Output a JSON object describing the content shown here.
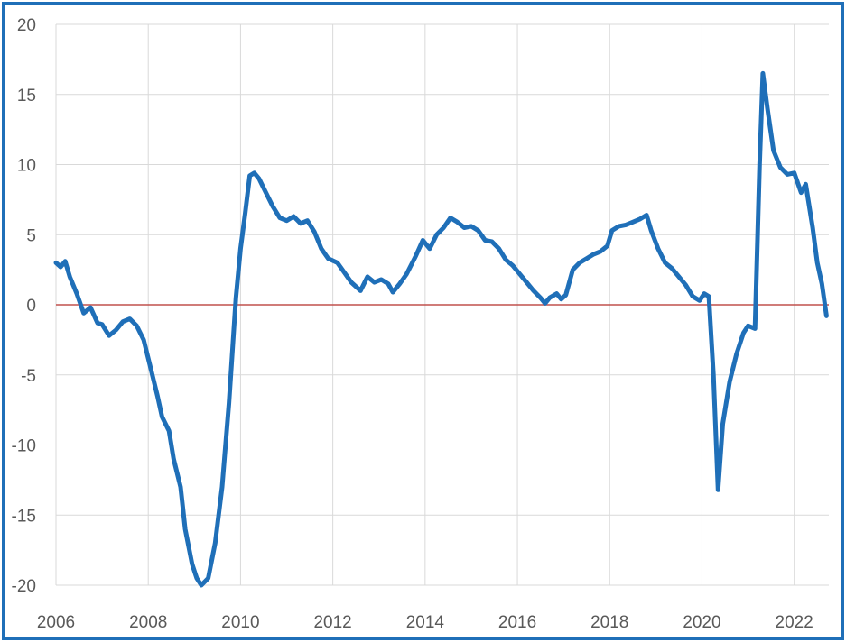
{
  "chart_data": {
    "type": "line",
    "title": "",
    "xlabel": "",
    "ylabel": "",
    "xlim": [
      2006.0,
      2022.75
    ],
    "ylim": [
      -20,
      20
    ],
    "x_ticks": [
      2006,
      2008,
      2010,
      2012,
      2014,
      2016,
      2018,
      2020,
      2022
    ],
    "x_tick_labels": [
      "2006",
      "2008",
      "2010",
      "2012",
      "2014",
      "2016",
      "2018",
      "2020",
      "2022"
    ],
    "y_ticks": [
      20,
      15,
      10,
      5,
      0,
      -5,
      -10,
      -15,
      -20
    ],
    "y_tick_labels": [
      "20",
      "15",
      "10",
      "5",
      "0",
      "-5",
      "-10",
      "-15",
      "-20"
    ],
    "grid": true,
    "reference_line": {
      "y": 0,
      "color": "#c0504d"
    },
    "colors": {
      "series": "#1f6fb8",
      "grid": "#d9d9d9",
      "frame": "#1f6fb8",
      "tick_text": "#595959"
    },
    "series": [
      {
        "color": "#1f6fb8",
        "points": [
          [
            2006.0,
            3.0
          ],
          [
            2006.1,
            2.7
          ],
          [
            2006.2,
            3.1
          ],
          [
            2006.3,
            2.0
          ],
          [
            2006.45,
            0.8
          ],
          [
            2006.6,
            -0.6
          ],
          [
            2006.75,
            -0.2
          ],
          [
            2006.9,
            -1.3
          ],
          [
            2007.0,
            -1.4
          ],
          [
            2007.15,
            -2.2
          ],
          [
            2007.3,
            -1.8
          ],
          [
            2007.45,
            -1.2
          ],
          [
            2007.6,
            -1.0
          ],
          [
            2007.75,
            -1.5
          ],
          [
            2007.9,
            -2.5
          ],
          [
            2008.05,
            -4.5
          ],
          [
            2008.2,
            -6.5
          ],
          [
            2008.3,
            -8.0
          ],
          [
            2008.45,
            -9.0
          ],
          [
            2008.55,
            -11.0
          ],
          [
            2008.7,
            -13.0
          ],
          [
            2008.8,
            -16.0
          ],
          [
            2008.95,
            -18.5
          ],
          [
            2009.05,
            -19.5
          ],
          [
            2009.15,
            -20.0
          ],
          [
            2009.3,
            -19.5
          ],
          [
            2009.45,
            -17.0
          ],
          [
            2009.6,
            -13.0
          ],
          [
            2009.75,
            -7.0
          ],
          [
            2009.9,
            0.5
          ],
          [
            2010.0,
            4.0
          ],
          [
            2010.1,
            6.5
          ],
          [
            2010.2,
            9.2
          ],
          [
            2010.3,
            9.4
          ],
          [
            2010.4,
            9.0
          ],
          [
            2010.55,
            8.0
          ],
          [
            2010.7,
            7.0
          ],
          [
            2010.85,
            6.2
          ],
          [
            2011.0,
            6.0
          ],
          [
            2011.15,
            6.3
          ],
          [
            2011.3,
            5.8
          ],
          [
            2011.45,
            6.0
          ],
          [
            2011.6,
            5.2
          ],
          [
            2011.75,
            4.0
          ],
          [
            2011.9,
            3.3
          ],
          [
            2012.1,
            3.0
          ],
          [
            2012.25,
            2.3
          ],
          [
            2012.4,
            1.6
          ],
          [
            2012.6,
            1.0
          ],
          [
            2012.75,
            2.0
          ],
          [
            2012.9,
            1.6
          ],
          [
            2013.05,
            1.8
          ],
          [
            2013.2,
            1.5
          ],
          [
            2013.3,
            0.9
          ],
          [
            2013.45,
            1.5
          ],
          [
            2013.6,
            2.2
          ],
          [
            2013.8,
            3.5
          ],
          [
            2013.95,
            4.6
          ],
          [
            2014.1,
            4.0
          ],
          [
            2014.25,
            5.0
          ],
          [
            2014.4,
            5.5
          ],
          [
            2014.55,
            6.2
          ],
          [
            2014.7,
            5.9
          ],
          [
            2014.85,
            5.5
          ],
          [
            2015.0,
            5.6
          ],
          [
            2015.15,
            5.3
          ],
          [
            2015.3,
            4.6
          ],
          [
            2015.45,
            4.5
          ],
          [
            2015.6,
            4.0
          ],
          [
            2015.75,
            3.2
          ],
          [
            2015.9,
            2.8
          ],
          [
            2016.05,
            2.2
          ],
          [
            2016.2,
            1.6
          ],
          [
            2016.35,
            1.0
          ],
          [
            2016.5,
            0.5
          ],
          [
            2016.6,
            0.1
          ],
          [
            2016.7,
            0.5
          ],
          [
            2016.85,
            0.8
          ],
          [
            2016.95,
            0.4
          ],
          [
            2017.05,
            0.7
          ],
          [
            2017.2,
            2.5
          ],
          [
            2017.35,
            3.0
          ],
          [
            2017.5,
            3.3
          ],
          [
            2017.65,
            3.6
          ],
          [
            2017.8,
            3.8
          ],
          [
            2017.95,
            4.2
          ],
          [
            2018.05,
            5.3
          ],
          [
            2018.2,
            5.6
          ],
          [
            2018.35,
            5.7
          ],
          [
            2018.5,
            5.9
          ],
          [
            2018.65,
            6.1
          ],
          [
            2018.8,
            6.4
          ],
          [
            2018.9,
            5.3
          ],
          [
            2019.05,
            4.0
          ],
          [
            2019.2,
            3.0
          ],
          [
            2019.35,
            2.6
          ],
          [
            2019.5,
            2.0
          ],
          [
            2019.65,
            1.4
          ],
          [
            2019.8,
            0.6
          ],
          [
            2019.95,
            0.3
          ],
          [
            2020.05,
            0.8
          ],
          [
            2020.15,
            0.6
          ],
          [
            2020.25,
            -5.0
          ],
          [
            2020.35,
            -13.2
          ],
          [
            2020.45,
            -8.5
          ],
          [
            2020.6,
            -5.5
          ],
          [
            2020.75,
            -3.5
          ],
          [
            2020.9,
            -2.0
          ],
          [
            2021.0,
            -1.5
          ],
          [
            2021.15,
            -1.7
          ],
          [
            2021.25,
            10.0
          ],
          [
            2021.32,
            16.5
          ],
          [
            2021.42,
            14.0
          ],
          [
            2021.55,
            11.0
          ],
          [
            2021.7,
            9.8
          ],
          [
            2021.85,
            9.3
          ],
          [
            2022.0,
            9.4
          ],
          [
            2022.15,
            8.0
          ],
          [
            2022.25,
            8.6
          ],
          [
            2022.4,
            5.5
          ],
          [
            2022.5,
            3.0
          ],
          [
            2022.6,
            1.5
          ],
          [
            2022.7,
            -0.8
          ]
        ]
      }
    ]
  }
}
